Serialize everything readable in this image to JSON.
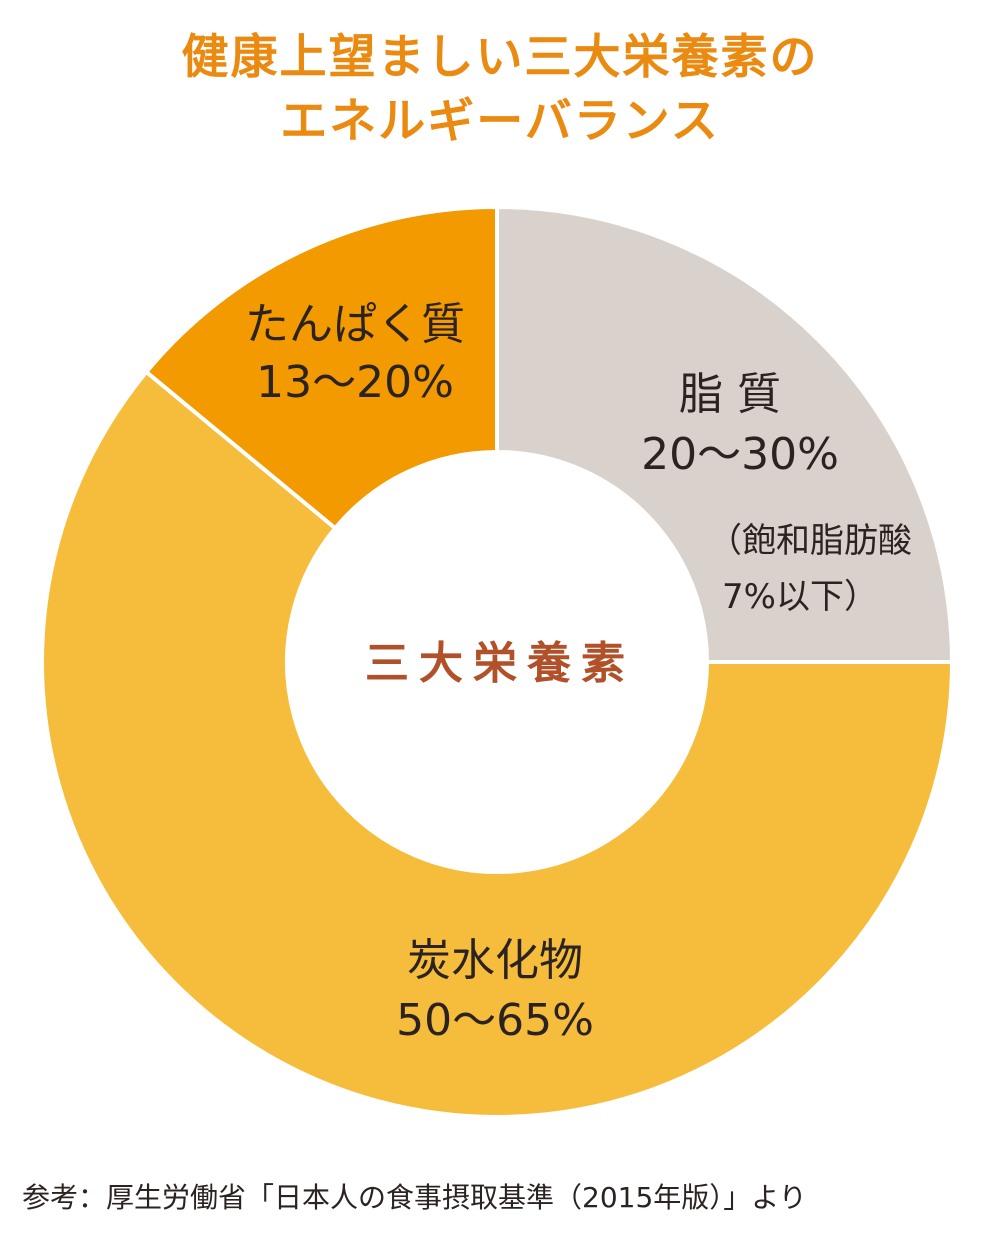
{
  "chart_data": {
    "type": "pie",
    "title_lines": [
      "健康上望ましい三大栄養素の",
      "エネルギーバランス"
    ],
    "center_label": "三大栄養素",
    "slices": [
      {
        "name": "脂 質",
        "range": "20〜30%",
        "note_lines": [
          "（飽和脂肪酸",
          "7%以下）"
        ],
        "value": 25,
        "color": "#d9d2cc"
      },
      {
        "name": "炭水化物",
        "range": "50〜65%",
        "value": 61,
        "color": "#f6bd3d"
      },
      {
        "name": "たんぱく質",
        "range": "13〜20%",
        "value": 14,
        "color": "#f29a00"
      }
    ],
    "source": "参考：厚生労働省「日本人の食事摂取基準（2015年版）」より"
  }
}
